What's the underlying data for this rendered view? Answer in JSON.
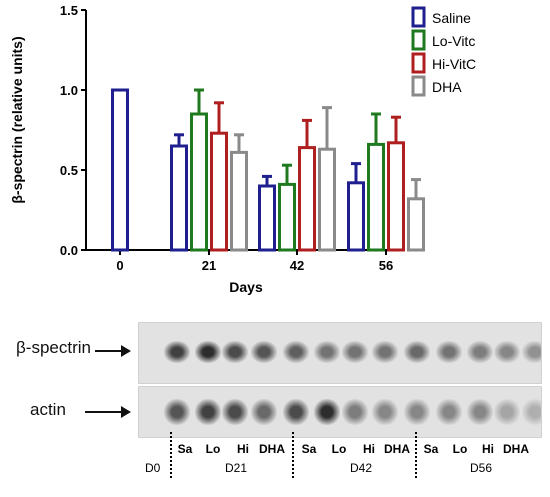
{
  "chart_data": {
    "type": "bar",
    "title": "",
    "xlabel": "Days",
    "ylabel": "β-spectrin (relative units)",
    "ylim": [
      0,
      1.5
    ],
    "yticks": [
      "0.0",
      "0.5",
      "1.0",
      "1.5"
    ],
    "categories": [
      "0",
      "21",
      "42",
      "56"
    ],
    "series": [
      {
        "name": "Saline",
        "color": "#1f1f8f",
        "values": [
          1.0,
          0.65,
          0.4,
          0.42
        ],
        "errors": [
          null,
          0.07,
          0.06,
          0.12
        ]
      },
      {
        "name": "Lo-Vitc",
        "color": "#1f7a1f",
        "values": [
          null,
          0.85,
          0.41,
          0.66
        ],
        "errors": [
          null,
          0.15,
          0.12,
          0.19
        ]
      },
      {
        "name": "Hi-VitC",
        "color": "#b01f1f",
        "values": [
          null,
          0.73,
          0.64,
          0.67
        ],
        "errors": [
          null,
          0.19,
          0.17,
          0.16
        ]
      },
      {
        "name": "DHA",
        "color": "#8a8a8a",
        "values": [
          null,
          0.61,
          0.63,
          0.32
        ],
        "errors": [
          null,
          0.11,
          0.26,
          0.12
        ]
      }
    ],
    "legend_position": "top-right",
    "grid": false
  },
  "blot": {
    "rows": [
      {
        "label": "β-spectrin"
      },
      {
        "label": "actin"
      }
    ],
    "lanes": [
      "Sa",
      "Lo",
      "Hi",
      "DHA",
      "Sa",
      "Lo",
      "Hi",
      "DHA",
      "Sa",
      "Lo",
      "Hi",
      "DHA"
    ],
    "time_points": [
      "D0",
      "D21",
      "D42",
      "D56"
    ],
    "beta_intensity": [
      0.85,
      0.95,
      0.8,
      0.75,
      0.7,
      0.6,
      0.6,
      0.6,
      0.65,
      0.6,
      0.55,
      0.5,
      0.45,
      0.3
    ],
    "actin_intensity": [
      0.75,
      0.85,
      0.8,
      0.65,
      0.8,
      0.95,
      0.55,
      0.5,
      0.5,
      0.5,
      0.5,
      0.35,
      0.3,
      0.25
    ]
  }
}
